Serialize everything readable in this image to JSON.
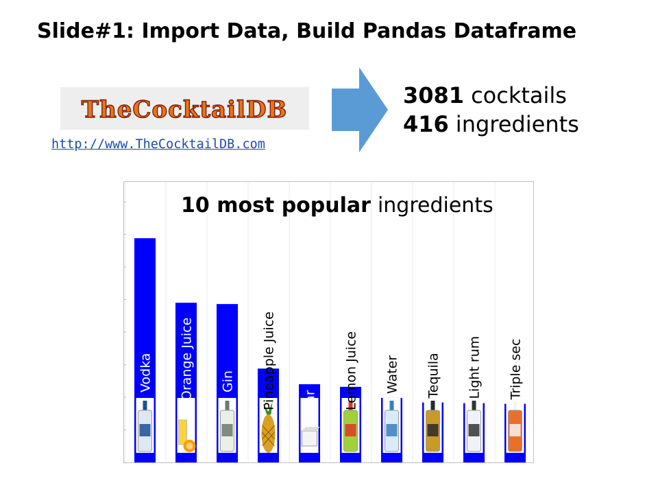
{
  "slide": {
    "title": "Slide#1: Import Data, Build Pandas Dataframe",
    "logo_text": "TheCocktailDB",
    "source_url": "http://www.TheCocktailDB.com",
    "stats": [
      {
        "value": "3081",
        "label": "cocktails"
      },
      {
        "value": "416",
        "label": "ingredients"
      }
    ]
  },
  "colors": {
    "bar": "#0000ff",
    "arrow": "#5b9bd5",
    "logo_text": "#e8741c",
    "link": "#1f4aa8"
  },
  "chart_data": {
    "type": "bar",
    "title_bold": "10 most popular",
    "title_rest": "ingredients",
    "categories": [
      "Vodka",
      "Orange Juice",
      "Gin",
      "Pineapple Juice",
      "Sugar",
      "Lemon Juice",
      "Water",
      "Tequila",
      "Light rum",
      "Triple sec"
    ],
    "values": [
      344,
      245,
      243,
      144,
      120,
      116,
      99,
      92,
      91,
      90
    ],
    "ylim": [
      0,
      400
    ],
    "label_inside": [
      true,
      true,
      true,
      false,
      true,
      false,
      false,
      false,
      false,
      false
    ],
    "icons": [
      "vodka-bottle-icon",
      "orange-juice-icon",
      "gin-bottle-icon",
      "pineapple-icon",
      "sugar-cube-icon",
      "lemon-juice-bottle-icon",
      "water-bottle-icon",
      "tequila-bottle-icon",
      "light-rum-bottle-icon",
      "triple-sec-bottle-icon"
    ],
    "grid": true
  }
}
